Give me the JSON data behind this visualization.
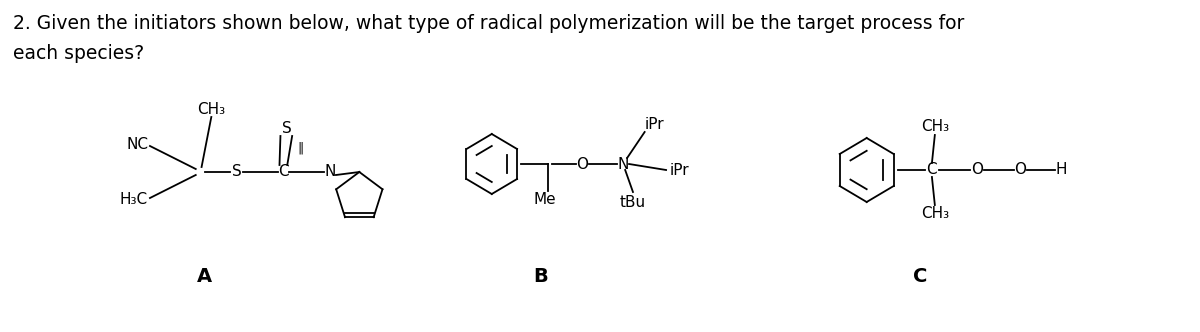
{
  "title_line1": "2. Given the initiators shown below, what type of radical polymerization will be the target process for",
  "title_line2": "each species?",
  "title_fontsize": 13.5,
  "bg_color": "#ffffff",
  "text_color": "#000000",
  "label_A": "A",
  "label_B": "B",
  "label_C": "C",
  "label_fontsize": 14,
  "fs": 11.0,
  "fs_small": 10.5
}
